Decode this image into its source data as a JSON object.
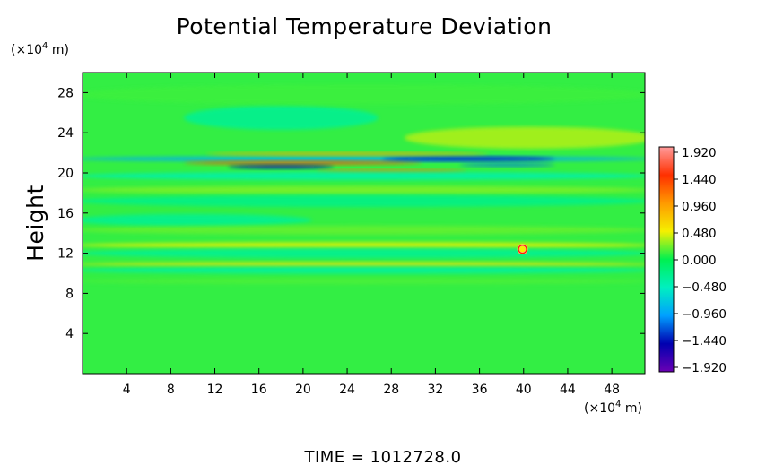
{
  "chart_data": {
    "type": "heatmap",
    "title": "Potential Temperature Deviation",
    "xlabel": "",
    "ylabel": "Height",
    "x_unit_prefix": "(×10",
    "x_unit_exp": "4",
    "x_unit_suffix": " m)",
    "y_unit_prefix": "(×10",
    "y_unit_exp": "4",
    "y_unit_suffix": " m)",
    "xlim": [
      0,
      51
    ],
    "ylim": [
      0,
      30
    ],
    "x_ticks": [
      4,
      8,
      12,
      16,
      20,
      24,
      28,
      32,
      36,
      40,
      44,
      48
    ],
    "y_ticks": [
      4,
      8,
      12,
      16,
      20,
      24,
      28
    ],
    "colorbar": {
      "range": [
        -1.92,
        1.92
      ],
      "labels": [
        "1.920",
        "1.440",
        "0.960",
        "0.480",
        "0.000",
        "−0.480",
        "−0.960",
        "−1.440",
        "−1.920"
      ],
      "label_values": [
        1.92,
        1.44,
        0.96,
        0.48,
        0.0,
        -0.48,
        -0.96,
        -1.44,
        -1.92
      ],
      "colors": [
        "#ff9a9a",
        "#ff3000",
        "#ff9a00",
        "#f5f000",
        "#00f050",
        "#00f0c0",
        "#00a0ff",
        "#0000b0",
        "#6a00b4"
      ]
    },
    "field_bands": [
      {
        "y": 23.5,
        "x0": 30,
        "x1": 51,
        "height": 2.2,
        "value": 0.35
      },
      {
        "y": 25.5,
        "x0": 10,
        "x1": 26,
        "height": 2.4,
        "value": -0.3
      },
      {
        "y": 27.8,
        "x0": 0,
        "x1": 51,
        "height": 2.0,
        "value": 0.12
      },
      {
        "y": 21.4,
        "x0": 0,
        "x1": 51,
        "height": 0.5,
        "value": -0.9
      },
      {
        "y": 21.0,
        "x0": 10,
        "x1": 30,
        "height": 0.35,
        "value": 1.3
      },
      {
        "y": 20.6,
        "x0": 14,
        "x1": 22,
        "height": 0.35,
        "value": -1.5
      },
      {
        "y": 21.4,
        "x0": 28,
        "x1": 42,
        "height": 0.4,
        "value": -1.4
      },
      {
        "y": 20.8,
        "x0": 35,
        "x1": 42,
        "height": 0.3,
        "value": -1.1
      },
      {
        "y": 21.9,
        "x0": 12,
        "x1": 36,
        "height": 0.3,
        "value": 0.9
      },
      {
        "y": 20.2,
        "x0": 22,
        "x1": 34,
        "height": 0.3,
        "value": 1.1
      },
      {
        "y": 19.7,
        "x0": 0,
        "x1": 51,
        "height": 0.8,
        "value": -0.4
      },
      {
        "y": 18.3,
        "x0": 0,
        "x1": 51,
        "height": 0.8,
        "value": 0.25
      },
      {
        "y": 17.2,
        "x0": 0,
        "x1": 51,
        "height": 1.2,
        "value": -0.25
      },
      {
        "y": 15.3,
        "x0": 0,
        "x1": 20,
        "height": 1.2,
        "value": -0.3
      },
      {
        "y": 14.3,
        "x0": 0,
        "x1": 51,
        "height": 0.9,
        "value": 0.2
      },
      {
        "y": 12.8,
        "x0": 0,
        "x1": 51,
        "height": 0.6,
        "value": 0.45
      },
      {
        "y": 12.0,
        "x0": 0,
        "x1": 51,
        "height": 1.0,
        "value": -0.3
      },
      {
        "y": 10.9,
        "x0": 0,
        "x1": 51,
        "height": 0.4,
        "value": 0.55
      },
      {
        "y": 10.3,
        "x0": 0,
        "x1": 51,
        "height": 0.7,
        "value": -0.35
      },
      {
        "y": 9.2,
        "x0": 0,
        "x1": 51,
        "height": 0.6,
        "value": 0.15
      }
    ],
    "anomalies": [
      {
        "x": 39.9,
        "y": 12.4,
        "value": 1.92
      }
    ]
  },
  "footer": {
    "time_label": "TIME  =  1012728.0"
  }
}
